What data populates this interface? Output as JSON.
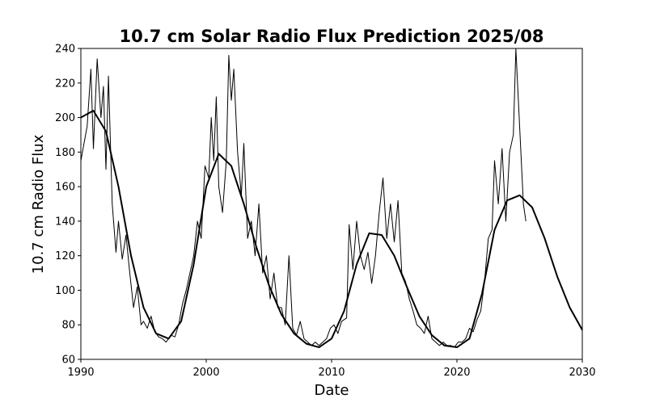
{
  "chart_data": {
    "type": "line",
    "title": "10.7 cm Solar Radio Flux Prediction 2025/08",
    "xlabel": "Date",
    "ylabel": "10.7 cm Radio Flux",
    "xlim": [
      1990,
      2030
    ],
    "xticks": [
      1990,
      2000,
      2010,
      2020,
      2030
    ],
    "ylim": [
      60,
      240
    ],
    "yticks": [
      60,
      80,
      100,
      120,
      140,
      160,
      180,
      200,
      220,
      240
    ],
    "series": [
      {
        "color": "#000000",
        "width": 1,
        "x": [
          1990.0,
          1990.5,
          1990.8,
          1991.0,
          1991.3,
          1991.6,
          1991.8,
          1992.0,
          1992.2,
          1992.5,
          1992.8,
          1993.0,
          1993.3,
          1993.6,
          1993.9,
          1994.2,
          1994.5,
          1994.8,
          1995.0,
          1995.3,
          1995.6,
          1995.9,
          1996.2,
          1996.5,
          1996.8,
          1997.2,
          1997.5,
          1997.8,
          1998.1,
          1998.4,
          1998.7,
          1999.0,
          1999.3,
          1999.6,
          1999.9,
          2000.2,
          2000.4,
          2000.6,
          2000.8,
          2001.0,
          2001.3,
          2001.6,
          2001.8,
          2002.0,
          2002.2,
          2002.5,
          2002.8,
          2003.0,
          2003.3,
          2003.6,
          2003.9,
          2004.2,
          2004.5,
          2004.8,
          2005.1,
          2005.4,
          2005.7,
          2006.0,
          2006.3,
          2006.6,
          2006.9,
          2007.2,
          2007.5,
          2007.8,
          2008.1,
          2008.4,
          2008.7,
          2009.0,
          2009.3,
          2009.6,
          2009.9,
          2010.2,
          2010.5,
          2010.8,
          2011.2,
          2011.4,
          2011.7,
          2012.0,
          2012.3,
          2012.6,
          2012.9,
          2013.2,
          2013.5,
          2013.8,
          2014.1,
          2014.4,
          2014.7,
          2015.0,
          2015.3,
          2015.6,
          2015.9,
          2016.2,
          2016.5,
          2016.8,
          2017.1,
          2017.4,
          2017.7,
          2018.0,
          2018.3,
          2018.6,
          2018.9,
          2019.2,
          2019.5,
          2019.8,
          2020.1,
          2020.4,
          2020.7,
          2021.0,
          2021.3,
          2021.6,
          2021.9,
          2022.2,
          2022.5,
          2022.8,
          2023.0,
          2023.3,
          2023.6,
          2023.9,
          2024.2,
          2024.5,
          2024.7,
          2024.9,
          2025.1,
          2025.3,
          2025.5
        ],
        "values": [
          175,
          195,
          228,
          182,
          234,
          200,
          218,
          170,
          224,
          150,
          122,
          140,
          118,
          132,
          110,
          90,
          102,
          80,
          82,
          78,
          85,
          76,
          73,
          72,
          70,
          74,
          73,
          80,
          92,
          100,
          110,
          120,
          140,
          130,
          172,
          165,
          200,
          175,
          212,
          160,
          145,
          175,
          236,
          210,
          228,
          180,
          155,
          185,
          130,
          140,
          120,
          150,
          110,
          120,
          95,
          110,
          90,
          90,
          80,
          120,
          78,
          74,
          82,
          72,
          70,
          68,
          70,
          68,
          70,
          72,
          78,
          80,
          75,
          82,
          84,
          138,
          112,
          140,
          120,
          112,
          122,
          104,
          120,
          145,
          165,
          130,
          150,
          128,
          152,
          110,
          105,
          95,
          88,
          80,
          78,
          75,
          85,
          72,
          70,
          68,
          70,
          68,
          68,
          67,
          70,
          70,
          72,
          78,
          76,
          83,
          88,
          105,
          130,
          135,
          175,
          150,
          182,
          140,
          180,
          190,
          240,
          210,
          180,
          150,
          140
        ]
      },
      {
        "color": "#000000",
        "width": 2,
        "x": [
          1990,
          1991,
          1992,
          1993,
          1994,
          1995,
          1996,
          1997,
          1998,
          1999,
          2000,
          2001,
          2002,
          2003,
          2004,
          2005,
          2006,
          2007,
          2008,
          2009,
          2010,
          2011,
          2012,
          2013,
          2014,
          2015,
          2016,
          2017,
          2018,
          2019,
          2020,
          2021,
          2022,
          2023,
          2024,
          2025,
          2026,
          2027,
          2028,
          2029,
          2030
        ],
        "values": [
          200,
          204,
          192,
          160,
          120,
          90,
          75,
          72,
          82,
          115,
          160,
          179,
          172,
          150,
          125,
          103,
          86,
          75,
          69,
          67,
          72,
          88,
          115,
          133,
          132,
          120,
          102,
          85,
          74,
          68,
          67,
          72,
          98,
          135,
          152,
          155,
          148,
          130,
          108,
          90,
          77
        ]
      }
    ]
  }
}
